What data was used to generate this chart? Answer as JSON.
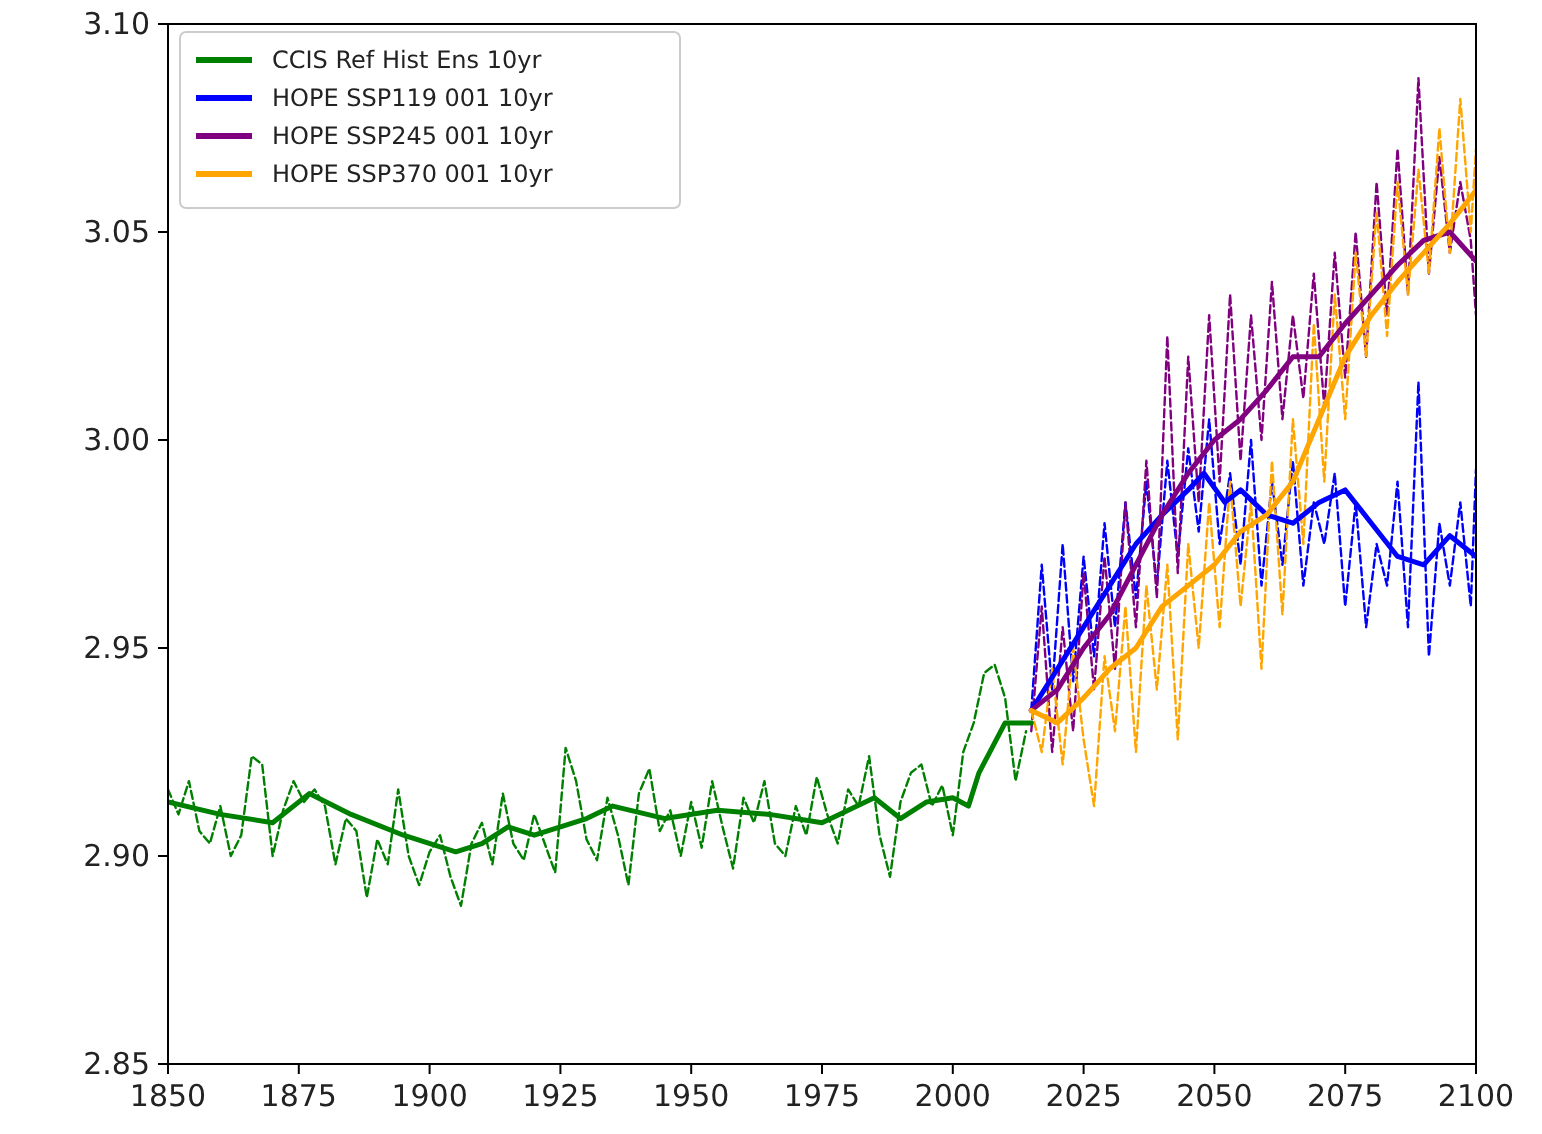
{
  "chart_data": {
    "type": "line",
    "xlim": [
      1850,
      2100
    ],
    "ylim": [
      2.85,
      3.1
    ],
    "xticks": [
      1850,
      1875,
      1900,
      1925,
      1950,
      1975,
      2000,
      2025,
      2050,
      2075,
      2100
    ],
    "yticks": [
      {
        "value": 2.85,
        "label": "2.85"
      },
      {
        "value": 2.9,
        "label": "2.90"
      },
      {
        "value": 2.95,
        "label": "2.95"
      },
      {
        "value": 3.0,
        "label": "3.00"
      },
      {
        "value": 3.05,
        "label": "3.05"
      },
      {
        "value": 3.1,
        "label": "3.10"
      }
    ],
    "grid": false,
    "legend": "top left",
    "series": [
      {
        "color": "#008000",
        "line_style": "dashed",
        "x": [
          1850,
          1852,
          1854,
          1856,
          1858,
          1860,
          1862,
          1864,
          1866,
          1868,
          1870,
          1872,
          1874,
          1876,
          1878,
          1880,
          1882,
          1884,
          1886,
          1888,
          1890,
          1892,
          1894,
          1896,
          1898,
          1900,
          1902,
          1904,
          1906,
          1908,
          1910,
          1912,
          1914,
          1916,
          1918,
          1920,
          1922,
          1924,
          1926,
          1928,
          1930,
          1932,
          1934,
          1936,
          1938,
          1940,
          1942,
          1944,
          1946,
          1948,
          1950,
          1952,
          1954,
          1956,
          1958,
          1960,
          1962,
          1964,
          1966,
          1968,
          1970,
          1972,
          1974,
          1976,
          1978,
          1980,
          1982,
          1984,
          1986,
          1988,
          1990,
          1992,
          1994,
          1996,
          1998,
          2000,
          2002,
          2004,
          2006,
          2008,
          2010,
          2012,
          2014
        ],
        "values": [
          2.916,
          2.91,
          2.918,
          2.906,
          2.903,
          2.912,
          2.9,
          2.905,
          2.924,
          2.922,
          2.9,
          2.911,
          2.918,
          2.913,
          2.916,
          2.912,
          2.898,
          2.909,
          2.906,
          2.89,
          2.904,
          2.898,
          2.916,
          2.9,
          2.893,
          2.901,
          2.905,
          2.895,
          2.888,
          2.903,
          2.908,
          2.898,
          2.915,
          2.903,
          2.899,
          2.91,
          2.903,
          2.896,
          2.926,
          2.918,
          2.904,
          2.899,
          2.914,
          2.905,
          2.893,
          2.915,
          2.921,
          2.906,
          2.911,
          2.9,
          2.913,
          2.902,
          2.918,
          2.907,
          2.897,
          2.914,
          2.908,
          2.918,
          2.903,
          2.9,
          2.912,
          2.905,
          2.919,
          2.91,
          2.903,
          2.916,
          2.912,
          2.924,
          2.905,
          2.895,
          2.913,
          2.92,
          2.922,
          2.912,
          2.917,
          2.905,
          2.925,
          2.932,
          2.944,
          2.946,
          2.938,
          2.918,
          2.93
        ]
      },
      {
        "color": "#0000ff",
        "line_style": "dashed",
        "x": [
          2015,
          2017,
          2019,
          2021,
          2023,
          2025,
          2027,
          2029,
          2031,
          2033,
          2035,
          2037,
          2039,
          2041,
          2043,
          2045,
          2047,
          2049,
          2051,
          2053,
          2055,
          2057,
          2059,
          2061,
          2063,
          2065,
          2067,
          2069,
          2071,
          2073,
          2075,
          2077,
          2079,
          2081,
          2083,
          2085,
          2087,
          2089,
          2091,
          2093,
          2095,
          2097,
          2099,
          2100
        ],
        "values": [
          2.935,
          2.97,
          2.94,
          2.975,
          2.942,
          2.972,
          2.948,
          2.98,
          2.955,
          2.985,
          2.962,
          2.99,
          2.965,
          2.995,
          2.972,
          2.998,
          2.978,
          3.005,
          2.975,
          2.992,
          2.97,
          3.0,
          2.965,
          2.99,
          2.97,
          2.995,
          2.965,
          2.985,
          2.975,
          2.992,
          2.96,
          2.985,
          2.955,
          2.975,
          2.965,
          2.99,
          2.955,
          3.014,
          2.948,
          2.98,
          2.965,
          2.985,
          2.96,
          2.993
        ]
      },
      {
        "color": "#800080",
        "line_style": "dashed",
        "x": [
          2015,
          2017,
          2019,
          2021,
          2023,
          2025,
          2027,
          2029,
          2031,
          2033,
          2035,
          2037,
          2039,
          2041,
          2043,
          2045,
          2047,
          2049,
          2051,
          2053,
          2055,
          2057,
          2059,
          2061,
          2063,
          2065,
          2067,
          2069,
          2071,
          2073,
          2075,
          2077,
          2079,
          2081,
          2083,
          2085,
          2087,
          2089,
          2091,
          2093,
          2095,
          2097,
          2099,
          2100
        ],
        "values": [
          2.93,
          2.96,
          2.925,
          2.955,
          2.93,
          2.968,
          2.94,
          2.972,
          2.945,
          2.985,
          2.955,
          2.995,
          2.962,
          3.025,
          2.968,
          3.02,
          2.985,
          3.03,
          2.99,
          3.035,
          2.995,
          3.03,
          3.0,
          3.038,
          3.005,
          3.03,
          3.01,
          3.04,
          3.008,
          3.045,
          3.015,
          3.05,
          3.02,
          3.062,
          3.03,
          3.07,
          3.035,
          3.087,
          3.04,
          3.068,
          3.045,
          3.062,
          3.048,
          3.03
        ]
      },
      {
        "color": "#ffa500",
        "line_style": "dashed",
        "x": [
          2015,
          2017,
          2019,
          2021,
          2023,
          2025,
          2027,
          2029,
          2031,
          2033,
          2035,
          2037,
          2039,
          2041,
          2043,
          2045,
          2047,
          2049,
          2051,
          2053,
          2055,
          2057,
          2059,
          2061,
          2063,
          2065,
          2067,
          2069,
          2071,
          2073,
          2075,
          2077,
          2079,
          2081,
          2083,
          2085,
          2087,
          2089,
          2091,
          2093,
          2095,
          2097,
          2099,
          2100
        ],
        "values": [
          2.935,
          2.925,
          2.945,
          2.922,
          2.95,
          2.928,
          2.912,
          2.948,
          2.93,
          2.96,
          2.925,
          2.965,
          2.94,
          2.97,
          2.928,
          2.975,
          2.95,
          2.985,
          2.955,
          2.99,
          2.96,
          2.985,
          2.945,
          2.995,
          2.958,
          3.005,
          2.975,
          3.028,
          2.99,
          3.035,
          3.005,
          3.045,
          3.02,
          3.055,
          3.025,
          3.062,
          3.035,
          3.065,
          3.04,
          3.075,
          3.045,
          3.082,
          3.05,
          3.07
        ]
      },
      {
        "name": "CCIS Ref Hist Ens 10yr",
        "color": "#008000",
        "line_style": "solid",
        "x": [
          1850,
          1860,
          1870,
          1877,
          1885,
          1895,
          1905,
          1910,
          1915,
          1920,
          1930,
          1935,
          1945,
          1955,
          1965,
          1975,
          1985,
          1990,
          1995,
          2000,
          2003,
          2005,
          2010,
          2015
        ],
        "values": [
          2.913,
          2.91,
          2.908,
          2.915,
          2.91,
          2.905,
          2.901,
          2.903,
          2.907,
          2.905,
          2.909,
          2.912,
          2.909,
          2.911,
          2.91,
          2.908,
          2.914,
          2.909,
          2.913,
          2.914,
          2.912,
          2.92,
          2.932,
          2.932
        ]
      },
      {
        "name": "HOPE SSP119 001 10yr",
        "color": "#0000ff",
        "line_style": "solid",
        "x": [
          2015,
          2020,
          2025,
          2030,
          2035,
          2040,
          2045,
          2048,
          2052,
          2055,
          2060,
          2065,
          2070,
          2075,
          2080,
          2085,
          2090,
          2095,
          2100
        ],
        "values": [
          2.935,
          2.945,
          2.955,
          2.965,
          2.975,
          2.982,
          2.988,
          2.992,
          2.985,
          2.988,
          2.982,
          2.98,
          2.985,
          2.988,
          2.98,
          2.972,
          2.97,
          2.977,
          2.972
        ]
      },
      {
        "name": "HOPE SSP245 001 10yr",
        "color": "#800080",
        "line_style": "solid",
        "x": [
          2015,
          2020,
          2025,
          2030,
          2035,
          2040,
          2045,
          2050,
          2055,
          2060,
          2065,
          2070,
          2075,
          2080,
          2085,
          2090,
          2095,
          2100
        ],
        "values": [
          2.935,
          2.94,
          2.95,
          2.958,
          2.97,
          2.982,
          2.992,
          3.0,
          3.005,
          3.012,
          3.02,
          3.02,
          3.028,
          3.035,
          3.042,
          3.048,
          3.05,
          3.043
        ]
      },
      {
        "name": "HOPE SSP370 001 10yr",
        "color": "#ffa500",
        "line_style": "solid",
        "x": [
          2015,
          2020,
          2025,
          2030,
          2035,
          2040,
          2045,
          2050,
          2055,
          2060,
          2065,
          2070,
          2075,
          2080,
          2085,
          2090,
          2095,
          2100
        ],
        "values": [
          2.935,
          2.932,
          2.938,
          2.945,
          2.95,
          2.96,
          2.965,
          2.97,
          2.978,
          2.982,
          2.99,
          3.005,
          3.02,
          3.03,
          3.038,
          3.045,
          3.052,
          3.06
        ]
      }
    ]
  }
}
